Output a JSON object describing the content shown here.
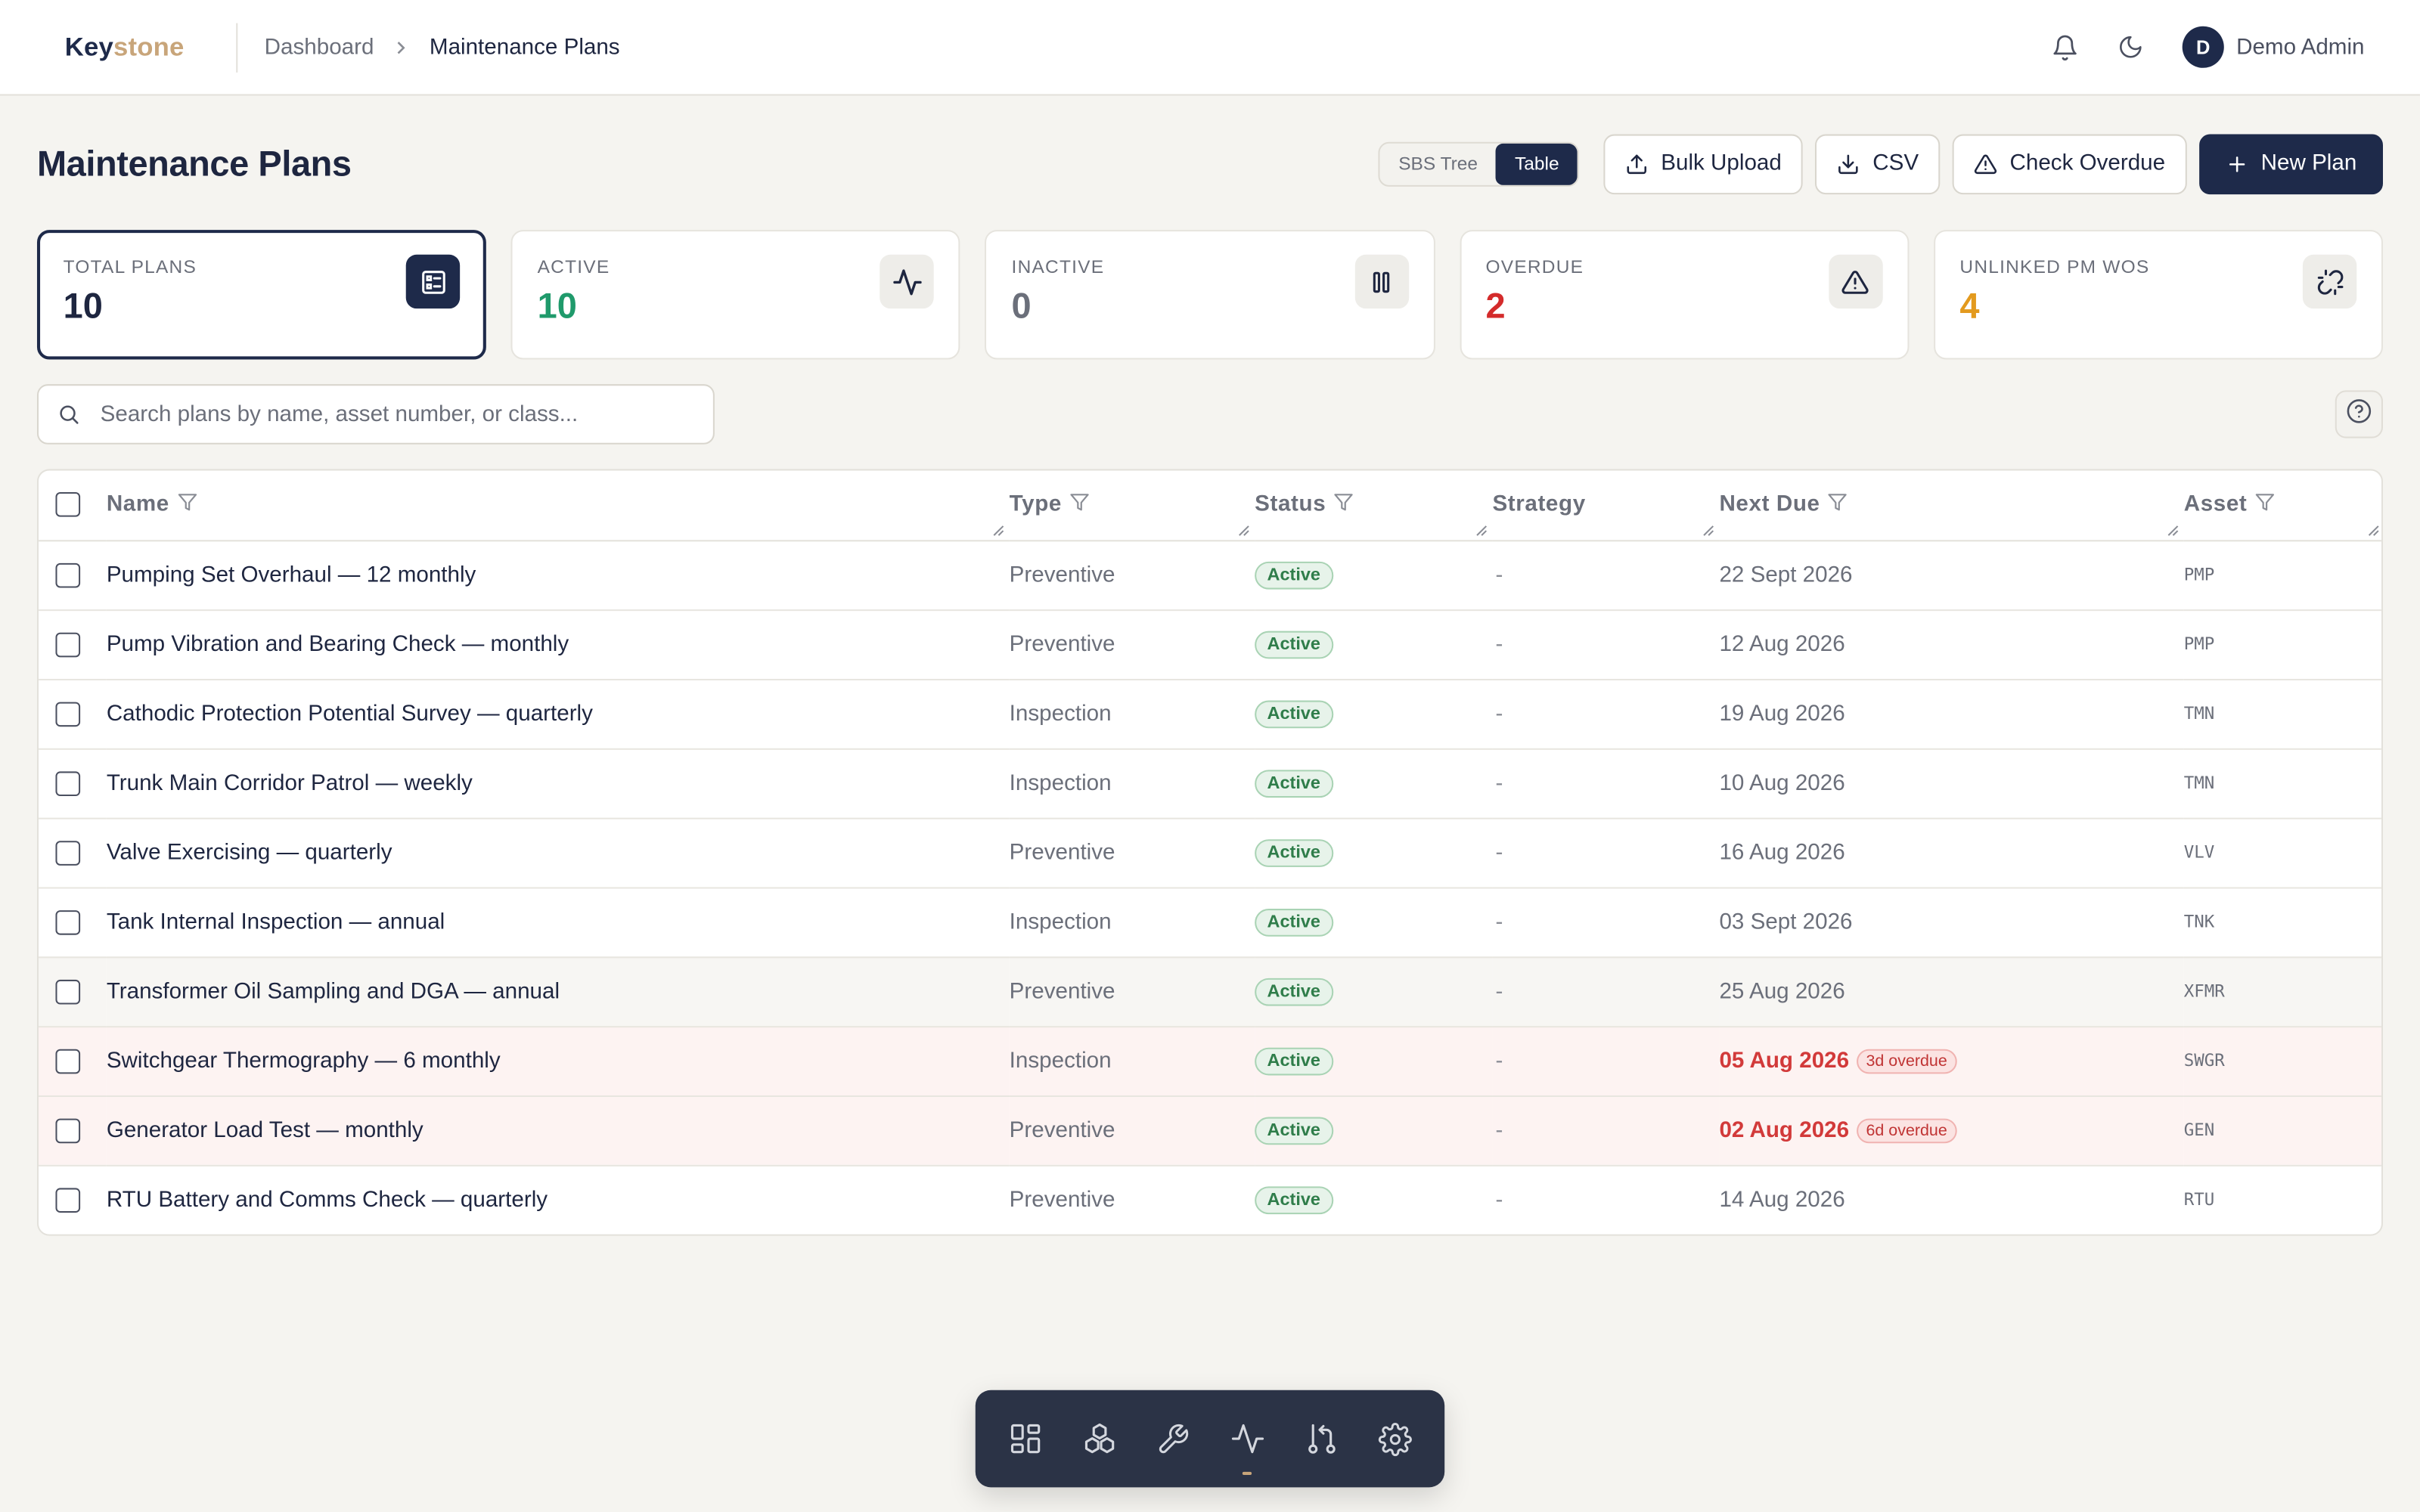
{
  "brand": {
    "part1": "Key",
    "part2": "stone"
  },
  "breadcrumb": {
    "parent": "Dashboard",
    "current": "Maintenance Plans"
  },
  "user": {
    "initial": "D",
    "name": "Demo Admin"
  },
  "page": {
    "title": "Maintenance Plans"
  },
  "view_toggle": {
    "tree_label": "SBS Tree",
    "table_label": "Table",
    "selected": "Table"
  },
  "toolbar": {
    "bulk_upload_label": "Bulk Upload",
    "csv_label": "CSV",
    "check_overdue_label": "Check Overdue",
    "new_plan_label": "New Plan"
  },
  "stats": [
    {
      "label": "TOTAL PLANS",
      "value": "10",
      "color": "#1e2640",
      "icon": "list-icon"
    },
    {
      "label": "ACTIVE",
      "value": "10",
      "color": "#1f9a6b",
      "icon": "activity-icon"
    },
    {
      "label": "INACTIVE",
      "value": "0",
      "color": "#6b6f7a",
      "icon": "pause-icon"
    },
    {
      "label": "OVERDUE",
      "value": "2",
      "color": "#d42b2b",
      "icon": "alert-triangle-icon"
    },
    {
      "label": "UNLINKED PM WOS",
      "value": "4",
      "color": "#e39a1e",
      "icon": "unlink-icon"
    }
  ],
  "search": {
    "placeholder": "Search plans by name, asset number, or class..."
  },
  "table": {
    "columns": [
      "Name",
      "Type",
      "Status",
      "Strategy",
      "Next Due",
      "Asset"
    ],
    "rows": [
      {
        "name": "Pumping Set Overhaul — 12 monthly",
        "type": "Preventive",
        "status": "Active",
        "strategy": "-",
        "next_due": "22 Sept 2026",
        "overdue": "",
        "asset": "PMP"
      },
      {
        "name": "Pump Vibration and Bearing Check — monthly",
        "type": "Preventive",
        "status": "Active",
        "strategy": "-",
        "next_due": "12 Aug 2026",
        "overdue": "",
        "asset": "PMP"
      },
      {
        "name": "Cathodic Protection Potential Survey — quarterly",
        "type": "Inspection",
        "status": "Active",
        "strategy": "-",
        "next_due": "19 Aug 2026",
        "overdue": "",
        "asset": "TMN"
      },
      {
        "name": "Trunk Main Corridor Patrol — weekly",
        "type": "Inspection",
        "status": "Active",
        "strategy": "-",
        "next_due": "10 Aug 2026",
        "overdue": "",
        "asset": "TMN"
      },
      {
        "name": "Valve Exercising — quarterly",
        "type": "Preventive",
        "status": "Active",
        "strategy": "-",
        "next_due": "16 Aug 2026",
        "overdue": "",
        "asset": "VLV"
      },
      {
        "name": "Tank Internal Inspection — annual",
        "type": "Inspection",
        "status": "Active",
        "strategy": "-",
        "next_due": "03 Sept 2026",
        "overdue": "",
        "asset": "TNK"
      },
      {
        "name": "Transformer Oil Sampling and DGA — annual",
        "type": "Preventive",
        "status": "Active",
        "strategy": "-",
        "next_due": "25 Aug 2026",
        "overdue": "",
        "asset": "XFMR"
      },
      {
        "name": "Switchgear Thermography — 6 monthly",
        "type": "Inspection",
        "status": "Active",
        "strategy": "-",
        "next_due": "05 Aug 2026",
        "overdue": "3d overdue",
        "asset": "SWGR"
      },
      {
        "name": "Generator Load Test — monthly",
        "type": "Preventive",
        "status": "Active",
        "strategy": "-",
        "next_due": "02 Aug 2026",
        "overdue": "6d overdue",
        "asset": "GEN"
      },
      {
        "name": "RTU Battery and Comms Check — quarterly",
        "type": "Preventive",
        "status": "Active",
        "strategy": "-",
        "next_due": "14 Aug 2026",
        "overdue": "",
        "asset": "RTU"
      }
    ]
  },
  "dock": {
    "items": [
      "dashboard-icon",
      "assets-icon",
      "wrench-icon",
      "activity-icon",
      "workflow-icon",
      "settings-icon"
    ],
    "active": "activity-icon"
  },
  "colors": {
    "primary": "#1e2a4a",
    "accent": "#c8a57a",
    "danger": "#d23a3a",
    "success": "#2f7d4a"
  }
}
